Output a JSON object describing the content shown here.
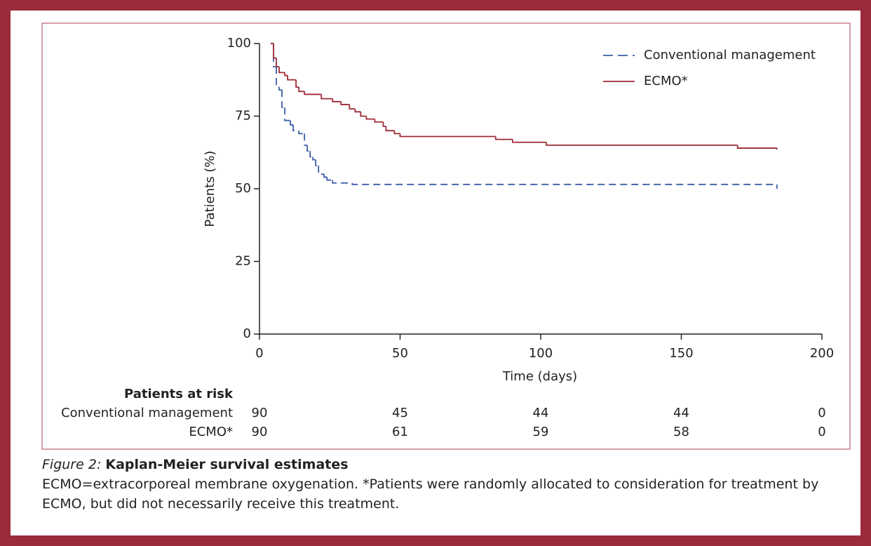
{
  "chart_data": {
    "type": "step",
    "xlabel": "Time (days)",
    "ylabel": "Patients (%)",
    "xlim": [
      0,
      200
    ],
    "xticks": [
      0,
      50,
      100,
      150,
      200
    ],
    "ylim": [
      0,
      100
    ],
    "yticks": [
      0,
      25,
      50,
      75,
      100
    ],
    "legend": "upper right",
    "series": [
      {
        "name": "Conventional management",
        "color": "#3b5ca6",
        "linestyle": "dashed",
        "x": [
          4,
          5,
          6,
          7,
          8,
          9,
          11,
          12,
          14,
          16,
          17,
          18,
          19,
          20,
          21,
          23,
          24,
          26,
          33,
          184
        ],
        "values": [
          100,
          92,
          85,
          84,
          78,
          73.5,
          72,
          70,
          69,
          65,
          63,
          61,
          60,
          58,
          55,
          54,
          53,
          52,
          51.5,
          50
        ]
      },
      {
        "name": "ECMO*",
        "color": "#9e2a35",
        "linestyle": "solid",
        "x": [
          4,
          5,
          6,
          7,
          9,
          10,
          13,
          14,
          16,
          22,
          26,
          29,
          32,
          34,
          36,
          38,
          41,
          44,
          45,
          48,
          50,
          84,
          90,
          102,
          170,
          184
        ],
        "values": [
          100,
          95,
          92,
          90,
          89,
          87.5,
          85,
          83.5,
          82.5,
          81,
          80,
          79,
          77.5,
          76.5,
          75,
          74,
          73,
          71.5,
          70,
          69,
          68,
          67,
          66,
          65,
          64,
          63.5
        ]
      }
    ],
    "risk_table": {
      "title": "Patients at risk",
      "rows": [
        {
          "label": "Conventional management",
          "values": [
            90,
            45,
            44,
            44,
            0
          ]
        },
        {
          "label": "ECMO*",
          "values": [
            90,
            61,
            59,
            58,
            0
          ]
        }
      ]
    }
  },
  "caption": {
    "figure_label": "Figure 2:",
    "title": "Kaplan-Meier survival estimates",
    "text": "ECMO=extracorporeal membrane oxygenation. *Patients were randomly allocated to consideration for treatment by ECMO, but did not necessarily receive this treatment."
  }
}
